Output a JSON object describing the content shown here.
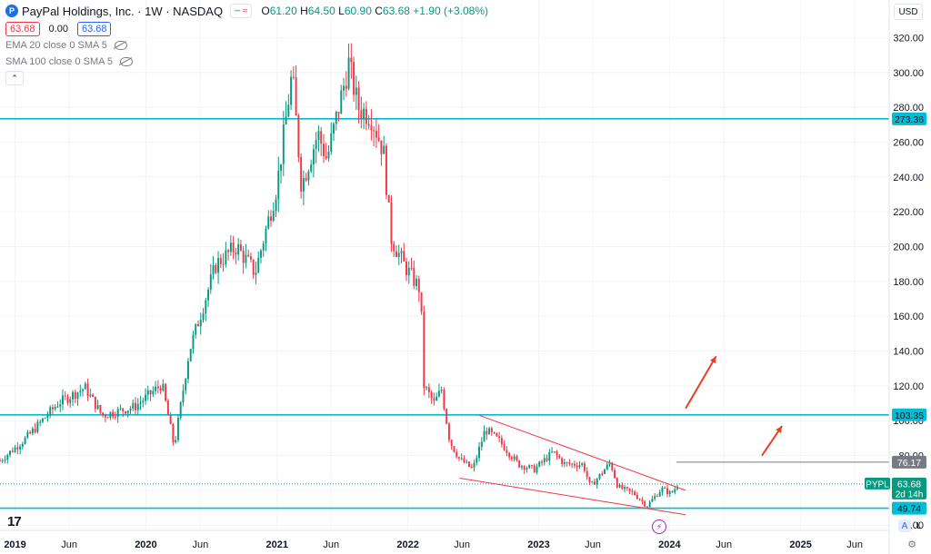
{
  "header": {
    "title": "PayPal Holdings, Inc. · 1W · NASDAQ",
    "open_label": "O",
    "open": "61.20",
    "high_label": "H",
    "high": "64.50",
    "low_label": "L",
    "low": "60.90",
    "close_label": "C",
    "close": "63.68",
    "change": "+1.90 (+3.08%)",
    "compare_glyph": "≈",
    "bid": "63.68",
    "spread": "0.00",
    "ask": "63.68"
  },
  "indicators": [
    {
      "label": "EMA 20 close 0 SMA 5"
    },
    {
      "label": "SMA 100 close 0 SMA 5"
    }
  ],
  "currency": "USD",
  "collapse_glyph": "⌃",
  "tv_logo": "17",
  "bottom_buttons": {
    "auto": "A",
    "log": "L",
    "settings": "⚙"
  },
  "flash_glyph": "⚡",
  "colors": {
    "up": "#089981",
    "down": "#f23645",
    "hline": "#00bcd4",
    "wedge": "#f23645",
    "arrow": "#e8421e",
    "label_cyan": "#00bcd4",
    "label_gray": "#787b86",
    "label_green": "#089981"
  },
  "chart_data": {
    "type": "candlestick",
    "symbol": "PYPL",
    "interval": "1W",
    "x_range": [
      "2018-11-20",
      "2025-09-05"
    ],
    "ylim": [
      37,
      327
    ],
    "y_ticks": [
      "40.00",
      "60.00",
      "80.00",
      "100.00",
      "120.00",
      "140.00",
      "160.00",
      "180.00",
      "200.00",
      "220.00",
      "240.00",
      "260.00",
      "280.00",
      "300.00",
      "320.00"
    ],
    "x_ticks": [
      {
        "label": "2019",
        "date": "2019-01-01"
      },
      {
        "label": "Jun",
        "date": "2019-06-01"
      },
      {
        "label": "2020",
        "date": "2020-01-01"
      },
      {
        "label": "Jun",
        "date": "2020-06-01"
      },
      {
        "label": "2021",
        "date": "2021-01-01"
      },
      {
        "label": "Jun",
        "date": "2021-06-01"
      },
      {
        "label": "2022",
        "date": "2022-01-01"
      },
      {
        "label": "Jun",
        "date": "2022-06-01"
      },
      {
        "label": "2023",
        "date": "2023-01-01"
      },
      {
        "label": "Jun",
        "date": "2023-06-01"
      },
      {
        "label": "2024",
        "date": "2024-01-01"
      },
      {
        "label": "Jun",
        "date": "2024-06-01"
      },
      {
        "label": "2025",
        "date": "2025-01-01"
      },
      {
        "label": "Jun",
        "date": "2025-06-01"
      }
    ],
    "anchors": [
      [
        "2018-11-20",
        77
      ],
      [
        "2019-02-01",
        90
      ],
      [
        "2019-05-01",
        110
      ],
      [
        "2019-07-15",
        119
      ],
      [
        "2019-09-01",
        103
      ],
      [
        "2019-12-01",
        108
      ],
      [
        "2020-02-15",
        121
      ],
      [
        "2020-03-20",
        85
      ],
      [
        "2020-05-01",
        140
      ],
      [
        "2020-07-15",
        190
      ],
      [
        "2020-09-10",
        200
      ],
      [
        "2020-11-01",
        185
      ],
      [
        "2021-01-01",
        235
      ],
      [
        "2021-02-12",
        300
      ],
      [
        "2021-03-10",
        235
      ],
      [
        "2021-04-25",
        265
      ],
      [
        "2021-05-20",
        250
      ],
      [
        "2021-07-20",
        305
      ],
      [
        "2021-08-15",
        280
      ],
      [
        "2021-09-20",
        275
      ],
      [
        "2021-10-25",
        255
      ],
      [
        "2021-11-15",
        205
      ],
      [
        "2021-12-20",
        190
      ],
      [
        "2022-01-20",
        180
      ],
      [
        "2022-02-05",
        175
      ],
      [
        "2022-02-15",
        120
      ],
      [
        "2022-03-15",
        110
      ],
      [
        "2022-04-05",
        118
      ],
      [
        "2022-04-28",
        88
      ],
      [
        "2022-05-25",
        78
      ],
      [
        "2022-07-01",
        72
      ],
      [
        "2022-08-05",
        95
      ],
      [
        "2022-09-15",
        88
      ],
      [
        "2022-11-05",
        75
      ],
      [
        "2022-12-20",
        72
      ],
      [
        "2023-02-10",
        82
      ],
      [
        "2023-03-15",
        75
      ],
      [
        "2023-05-05",
        75
      ],
      [
        "2023-05-25",
        62
      ],
      [
        "2023-07-20",
        76
      ],
      [
        "2023-08-10",
        62
      ],
      [
        "2023-09-25",
        58
      ],
      [
        "2023-10-30",
        51
      ],
      [
        "2023-12-10",
        61
      ],
      [
        "2024-01-05",
        58
      ],
      [
        "2024-01-26",
        63.68
      ]
    ],
    "hlines": [
      {
        "value": 273.36,
        "label": "273.36",
        "style": "cyan"
      },
      {
        "value": 103.35,
        "label": "103.35",
        "style": "cyan"
      },
      {
        "value": 49.74,
        "label": "49.74",
        "style": "cyan"
      },
      {
        "value": 76.17,
        "label": "76.17",
        "style": "gray"
      }
    ],
    "last_price": {
      "symbol": "PYPL",
      "value": "63.68",
      "countdown": "2d 14h",
      "numeric": 63.68
    },
    "wedge_lines": [
      {
        "from": [
          "2022-07-20",
          103
        ],
        "to": [
          "2024-02-15",
          60
        ]
      },
      {
        "from": [
          "2022-05-25",
          67
        ],
        "to": [
          "2024-02-15",
          46
        ]
      }
    ],
    "arrows": [
      {
        "from": [
          "2024-02-15",
          107
        ],
        "to": [
          "2024-05-10",
          137
        ]
      },
      {
        "from": [
          "2024-09-15",
          80
        ],
        "to": [
          "2024-11-10",
          97
        ]
      }
    ]
  }
}
